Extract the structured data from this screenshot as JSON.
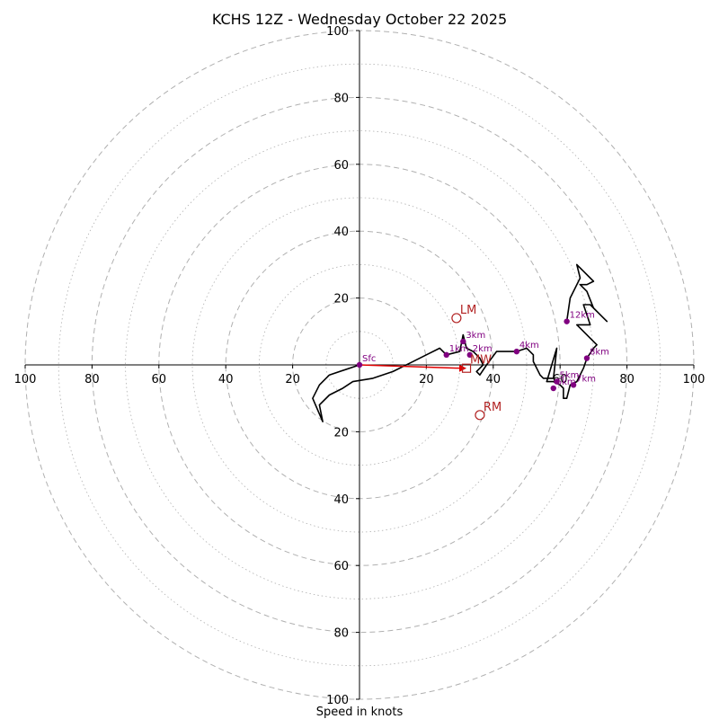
{
  "chart_data": {
    "type": "hodograph",
    "title": "KCHS 12Z - Wednesday October 22 2025",
    "xlabel": "Speed in knots",
    "units": "knots",
    "range": [
      -100,
      100
    ],
    "ring_major_step": 20,
    "ring_minor_step": 10,
    "x_tick_labels": [
      {
        "value": -100,
        "label": "100"
      },
      {
        "value": -80,
        "label": "80"
      },
      {
        "value": -60,
        "label": "60"
      },
      {
        "value": -40,
        "label": "40"
      },
      {
        "value": -20,
        "label": "20"
      },
      {
        "value": 20,
        "label": "20"
      },
      {
        "value": 40,
        "label": "40"
      },
      {
        "value": 60,
        "label": "60"
      },
      {
        "value": 80,
        "label": "80"
      },
      {
        "value": 100,
        "label": "100"
      }
    ],
    "y_tick_labels": [
      {
        "value": 100,
        "label": "100"
      },
      {
        "value": 80,
        "label": "80"
      },
      {
        "value": 60,
        "label": "60"
      },
      {
        "value": 40,
        "label": "40"
      },
      {
        "value": 20,
        "label": "20"
      },
      {
        "value": -20,
        "label": "20"
      },
      {
        "value": -40,
        "label": "40"
      },
      {
        "value": -60,
        "label": "60"
      },
      {
        "value": -80,
        "label": "80"
      },
      {
        "value": -100,
        "label": "100"
      }
    ],
    "hodograph_line": [
      [
        0,
        0
      ],
      [
        -9,
        -3
      ],
      [
        -12,
        -6
      ],
      [
        -14,
        -10
      ],
      [
        -11,
        -17
      ],
      [
        -12,
        -12
      ],
      [
        -9,
        -9
      ],
      [
        -5,
        -7
      ],
      [
        -2,
        -5
      ],
      [
        4,
        -4
      ],
      [
        10,
        -2
      ],
      [
        16,
        1
      ],
      [
        20,
        3
      ],
      [
        24,
        5
      ],
      [
        26,
        3
      ],
      [
        30,
        4
      ],
      [
        31,
        9
      ],
      [
        32,
        5
      ],
      [
        34,
        4
      ],
      [
        36,
        2
      ],
      [
        37,
        0
      ],
      [
        35,
        -2
      ],
      [
        36,
        -3
      ],
      [
        38,
        0
      ],
      [
        41,
        4
      ],
      [
        44,
        4
      ],
      [
        47,
        4
      ],
      [
        50,
        5
      ],
      [
        52,
        3
      ],
      [
        52,
        1
      ],
      [
        53,
        -1
      ],
      [
        54,
        -3
      ],
      [
        55,
        -4
      ],
      [
        56,
        -4
      ],
      [
        58,
        -4
      ],
      [
        59,
        5
      ],
      [
        56,
        -5
      ],
      [
        58,
        -5
      ],
      [
        60,
        -6
      ],
      [
        61,
        -7
      ],
      [
        61,
        -10
      ],
      [
        62,
        -10
      ],
      [
        63,
        -6
      ],
      [
        65,
        -5
      ],
      [
        67,
        -1
      ],
      [
        68,
        2
      ],
      [
        70,
        5
      ],
      [
        71,
        6
      ],
      [
        66,
        11
      ],
      [
        65,
        12
      ],
      [
        69,
        12
      ],
      [
        67,
        18
      ],
      [
        69,
        18
      ],
      [
        73,
        14
      ],
      [
        74,
        13
      ],
      [
        70,
        17
      ],
      [
        68,
        22
      ],
      [
        66,
        24
      ],
      [
        68,
        24
      ],
      [
        70,
        25
      ],
      [
        67,
        28
      ],
      [
        65,
        30
      ],
      [
        66,
        26
      ],
      [
        63,
        20
      ],
      [
        62,
        13
      ]
    ],
    "height_markers": [
      {
        "label": "Sfc",
        "u": 0,
        "v": 0
      },
      {
        "label": "1km",
        "u": 26,
        "v": 3
      },
      {
        "label": "3km",
        "u": 31,
        "v": 7
      },
      {
        "label": "2km",
        "u": 33,
        "v": 3
      },
      {
        "label": "4km",
        "u": 47,
        "v": 4
      },
      {
        "label": "5km",
        "u": 59,
        "v": -5
      },
      {
        "label": "6km",
        "u": 58,
        "v": -7
      },
      {
        "label": "7km",
        "u": 64,
        "v": -6
      },
      {
        "label": "8km",
        "u": 68,
        "v": 2
      },
      {
        "label": "12km",
        "u": 62,
        "v": 13
      }
    ],
    "storm_motion": [
      {
        "label": "LM",
        "u": 29,
        "v": 14,
        "marker": "circle"
      },
      {
        "label": "RM",
        "u": 36,
        "v": -15,
        "marker": "circle"
      },
      {
        "label": "MW",
        "u": 32,
        "v": -1,
        "marker": "square"
      }
    ],
    "shear_vector": {
      "from": [
        0,
        0
      ],
      "to": [
        32,
        -1
      ]
    },
    "colors": {
      "line": "#000000",
      "markers": "#800080",
      "storm_motion": "#b22222",
      "shear_vector": "#e00000",
      "grid": "#b0b0b0"
    }
  }
}
